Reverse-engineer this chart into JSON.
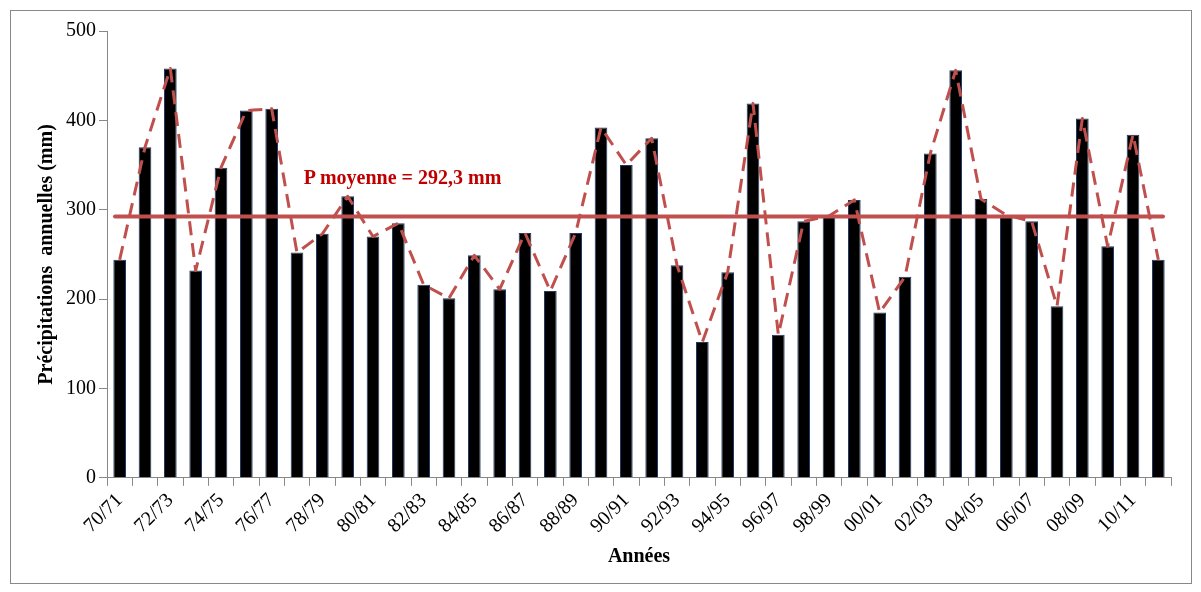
{
  "chart_data": {
    "type": "bar",
    "xlabel": "Années",
    "ylabel": "Précipitations  annuelles (mm)",
    "categories": [
      "70/71",
      null,
      "72/73",
      null,
      "74/75",
      null,
      "76/77",
      null,
      "78/79",
      null,
      "80/81",
      null,
      "82/83",
      null,
      "84/85",
      null,
      "86/87",
      null,
      "88/89",
      null,
      "90/91",
      null,
      "92/93",
      null,
      "94/95",
      null,
      "96/97",
      null,
      "98/99",
      null,
      "00/01",
      null,
      "02/03",
      null,
      "04/05",
      null,
      "06/07",
      null,
      "08/09",
      null,
      "10/11",
      null
    ],
    "series": [
      {
        "color": "#000000",
        "values": [
          244,
          370,
          458,
          232,
          347,
          411,
          413,
          252,
          273,
          315,
          270,
          285,
          216,
          201,
          249,
          211,
          274,
          209,
          274,
          392,
          350,
          380,
          238,
          152,
          230,
          419,
          160,
          287,
          293,
          311,
          185,
          225,
          363,
          456,
          312,
          294,
          287,
          192,
          402,
          259,
          384,
          244
        ]
      },
      {
        "type": "line",
        "color": "#c0504d",
        "line_style": "dashed",
        "marker": "none",
        "values": [
          244,
          370,
          458,
          232,
          347,
          411,
          413,
          252,
          273,
          315,
          270,
          285,
          216,
          201,
          249,
          211,
          274,
          209,
          274,
          392,
          350,
          380,
          238,
          152,
          230,
          419,
          160,
          287,
          293,
          311,
          185,
          225,
          363,
          456,
          312,
          294,
          287,
          192,
          402,
          259,
          384,
          244
        ]
      }
    ],
    "ylim": [
      0,
      500
    ],
    "yticks": [
      0,
      100,
      200,
      300,
      400,
      500
    ],
    "grid": false,
    "legend": false,
    "ref_lines": [
      {
        "axis": "y",
        "value": 292.3,
        "label": "P moyenne = 292,3 mm",
        "color": "#c0504d"
      }
    ]
  }
}
